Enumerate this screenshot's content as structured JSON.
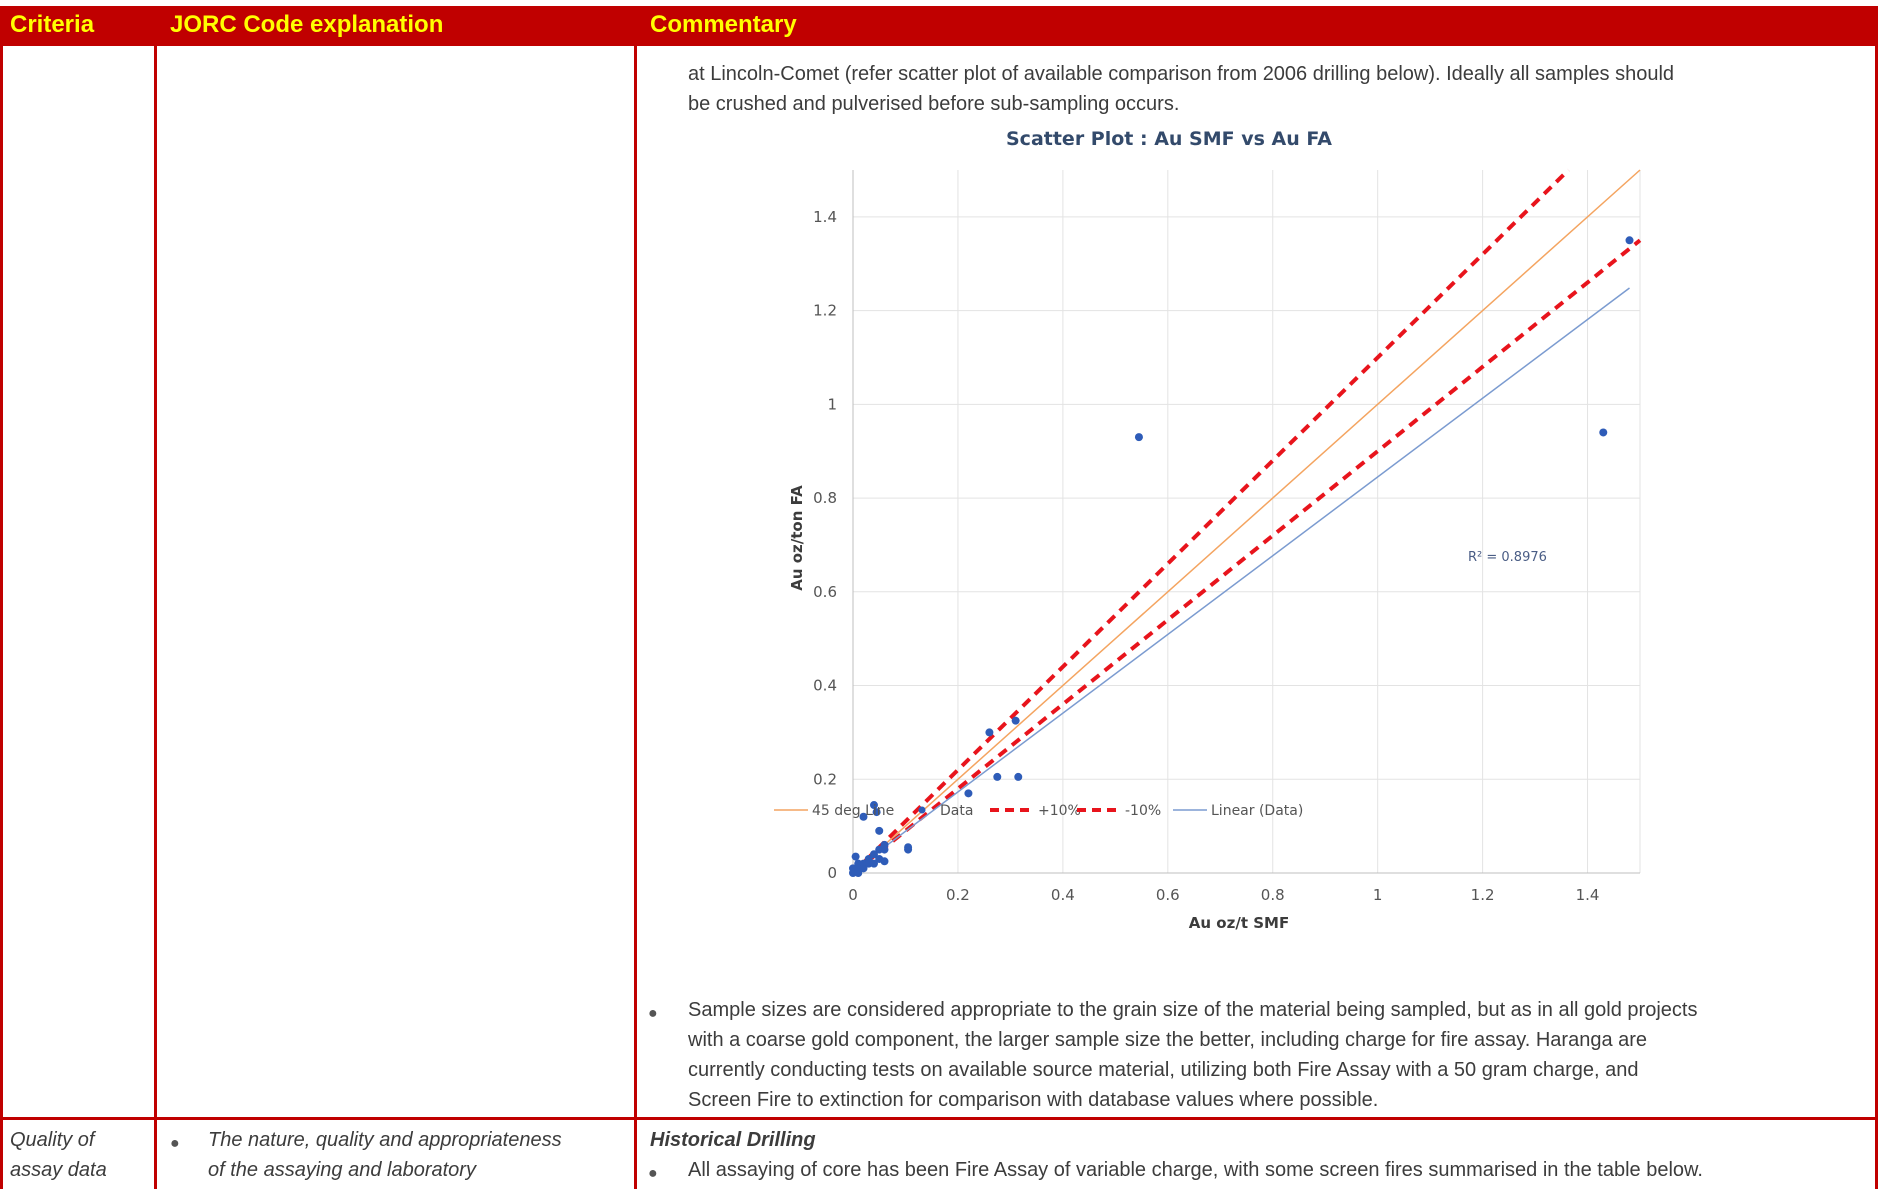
{
  "header": {
    "col1": "Criteria",
    "col2": "JORC Code explanation",
    "col3": "Commentary"
  },
  "row1": {
    "commentary_line1": "at Lincoln-Comet (refer scatter plot of available comparison from 2006 drilling below). Ideally all samples should",
    "commentary_line2": "be crushed and pulverised before sub-sampling occurs.",
    "bullet_lines": [
      "Sample sizes are considered appropriate to the grain size of the material being sampled, but as in all gold projects",
      "with a coarse gold component, the larger sample size the better, including charge for fire assay.  Haranga are",
      "currently conducting tests on available source material, utilizing both Fire Assay with a 50 gram charge, and",
      "Screen Fire to extinction for comparison with database values where possible."
    ]
  },
  "row2": {
    "criteria_line1": "Quality of",
    "criteria_line2": "assay data",
    "jorc_line1": "The nature, quality and appropriateness",
    "jorc_line2": "of the assaying and laboratory",
    "section_heading": "Historical Drilling",
    "bullet_line": "All assaying of core has been Fire Assay of variable charge, with some screen fires summarised in the table below."
  },
  "chart_data": {
    "type": "scatter",
    "title": "Scatter Plot : Au SMF vs Au FA",
    "xlabel": "Au oz/t SMF",
    "ylabel": "Au oz/ton FA",
    "xlim": [
      0,
      1.5
    ],
    "ylim": [
      0,
      1.5
    ],
    "x_ticks": [
      0,
      0.2,
      0.4,
      0.6,
      0.8,
      1,
      1.2,
      1.4
    ],
    "y_ticks": [
      0,
      0.2,
      0.4,
      0.6,
      0.8,
      1,
      1.2,
      1.4
    ],
    "x_tick_labels": [
      "0",
      "0.2",
      "0.4",
      "0.6",
      "0.8",
      "1",
      "1.2",
      "1.4"
    ],
    "y_tick_labels": [
      "0",
      "0.2",
      "0.4",
      "0.6",
      "0.8",
      "1",
      "1.2",
      "1.4"
    ],
    "grid": true,
    "legend_position": "bottom",
    "annotation": "R² = 0.8976",
    "series": [
      {
        "name": "Data",
        "kind": "points",
        "color": "#2e5cb8",
        "points": [
          [
            0.0,
            0.0
          ],
          [
            0.0,
            0.01
          ],
          [
            0.01,
            0.0
          ],
          [
            0.01,
            0.02
          ],
          [
            0.01,
            0.01
          ],
          [
            0.02,
            0.02
          ],
          [
            0.02,
            0.01
          ],
          [
            0.03,
            0.02
          ],
          [
            0.03,
            0.03
          ],
          [
            0.04,
            0.02
          ],
          [
            0.04,
            0.04
          ],
          [
            0.05,
            0.05
          ],
          [
            0.05,
            0.03
          ],
          [
            0.06,
            0.05
          ],
          [
            0.06,
            0.06
          ],
          [
            0.005,
            0.035
          ],
          [
            0.02,
            0.12
          ],
          [
            0.04,
            0.145
          ],
          [
            0.045,
            0.13
          ],
          [
            0.05,
            0.09
          ],
          [
            0.06,
            0.025
          ],
          [
            0.105,
            0.05
          ],
          [
            0.105,
            0.055
          ],
          [
            0.22,
            0.17
          ],
          [
            0.26,
            0.3
          ],
          [
            0.275,
            0.205
          ],
          [
            0.31,
            0.325
          ],
          [
            0.315,
            0.205
          ],
          [
            0.545,
            0.93
          ],
          [
            1.43,
            0.94
          ],
          [
            1.48,
            1.35
          ]
        ]
      },
      {
        "name": "45 deg Line",
        "kind": "line",
        "color": "#f4a460",
        "dash": "",
        "slope": 1.0,
        "intercept": 0
      },
      {
        "name": "+10%",
        "kind": "line",
        "color": "#e8141c",
        "dash": "10,7",
        "slope": 1.1,
        "intercept": 0
      },
      {
        "name": "-10%",
        "kind": "line",
        "color": "#e8141c",
        "dash": "10,7",
        "slope": 0.9,
        "intercept": 0
      },
      {
        "name": "Linear (Data)",
        "kind": "line",
        "color": "#7b9bd0",
        "dash": "",
        "slope": 0.84,
        "intercept": 0.005
      }
    ]
  }
}
